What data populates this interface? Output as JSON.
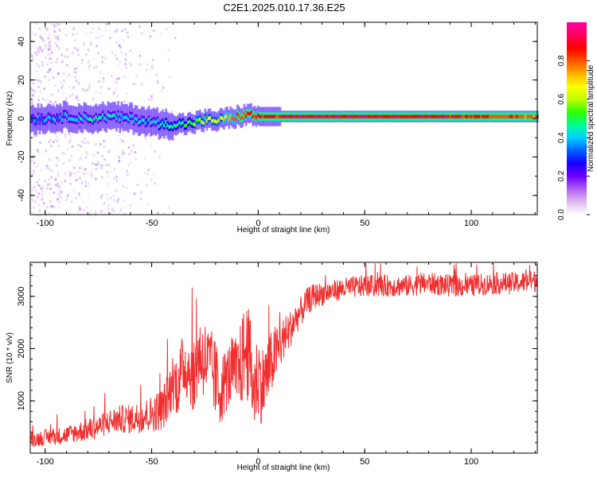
{
  "title": "C2E1.2025.010.17.36.E25",
  "chart_data": [
    {
      "type": "heatmap",
      "xlabel": "Height of straight line (km)",
      "ylabel": "Frequency (Hz)",
      "xlim": [
        -107,
        131
      ],
      "ylim": [
        -50,
        50
      ],
      "xticks": [
        "-100",
        "-50",
        "0",
        "50",
        "100"
      ],
      "yticks": [
        "40",
        "20",
        "0",
        "-20",
        "-40"
      ],
      "colorbar": {
        "label": "Normalized spectral amplitude",
        "range": [
          0,
          1
        ],
        "ticks": [
          "0.0",
          "0.2",
          "0.4",
          "0.6",
          "0.8"
        ],
        "colors": [
          "#ffffff",
          "#e0b8f0",
          "#b060f0",
          "#6a00ff",
          "#1a00ff",
          "#0060ff",
          "#00d0ff",
          "#00ff90",
          "#30ff00",
          "#c0ff00",
          "#ffff00",
          "#ffb000",
          "#ff5000",
          "#ff0000",
          "#ff0060",
          "#ff00a0"
        ]
      },
      "ridge_profile": {
        "x": [
          -107,
          -100,
          -90,
          -80,
          -70,
          -60,
          -50,
          -45,
          -40,
          -35,
          -30,
          -25,
          -20,
          -15,
          -10,
          -5,
          0,
          5,
          10,
          20,
          40,
          60,
          80,
          100,
          120,
          131
        ],
        "center_hz": [
          0,
          0,
          1,
          0,
          1,
          0,
          -2,
          -3,
          -3,
          -3,
          -2,
          -1,
          -1,
          0,
          1,
          2,
          1,
          1,
          1,
          1,
          1,
          1,
          1,
          1,
          1,
          1
        ],
        "amplitude": [
          0.35,
          0.38,
          0.4,
          0.42,
          0.42,
          0.4,
          0.4,
          0.45,
          0.5,
          0.5,
          0.55,
          0.6,
          0.62,
          0.7,
          0.8,
          0.85,
          0.85,
          0.85,
          0.88,
          0.9,
          0.9,
          0.88,
          0.9,
          0.85,
          0.82,
          0.8
        ]
      }
    },
    {
      "type": "line",
      "xlabel": "Height of straight line (km)",
      "ylabel": "SNR (10 * v/v)",
      "xlim": [
        -107,
        131
      ],
      "ylim": [
        0,
        3650
      ],
      "xticks": [
        "-100",
        "-50",
        "0",
        "50",
        "100"
      ],
      "yticks": [
        "1000",
        "2000",
        "3000"
      ],
      "series": [
        {
          "color": "#f03030",
          "x": [
            -107,
            -100,
            -95,
            -90,
            -85,
            -80,
            -75,
            -70,
            -65,
            -60,
            -55,
            -50,
            -45,
            -42,
            -40,
            -38,
            -35,
            -32,
            -30,
            -28,
            -25,
            -22,
            -20,
            -18,
            -15,
            -12,
            -10,
            -8,
            -6,
            -4,
            -2,
            0,
            2,
            4,
            6,
            8,
            10,
            12,
            14,
            16,
            18,
            20,
            23,
            26,
            30,
            35,
            40,
            50,
            60,
            70,
            80,
            90,
            100,
            110,
            120,
            131
          ],
          "y": [
            250,
            300,
            320,
            350,
            400,
            450,
            500,
            600,
            650,
            650,
            700,
            750,
            850,
            1100,
            1400,
            1300,
            1700,
            1600,
            1400,
            1900,
            1800,
            1600,
            1400,
            1200,
            1400,
            1600,
            1500,
            1700,
            2000,
            1800,
            1200,
            1500,
            1300,
            1500,
            1700,
            1900,
            2000,
            2200,
            2300,
            2450,
            2600,
            2700,
            2900,
            3000,
            3050,
            3100,
            3150,
            3200,
            3200,
            3200,
            3250,
            3200,
            3200,
            3250,
            3250,
            3300
          ],
          "noise_amplitude": [
            200,
            220,
            230,
            250,
            280,
            320,
            320,
            350,
            380,
            400,
            450,
            500,
            600,
            700,
            800,
            850,
            900,
            950,
            1000,
            1100,
            1100,
            1100,
            1100,
            1000,
            900,
            950,
            1000,
            1200,
            1400,
            1300,
            1200,
            1200,
            1100,
            1000,
            900,
            800,
            700,
            600,
            550,
            500,
            450,
            420,
            380,
            350,
            320,
            300,
            300,
            300,
            300,
            300,
            300,
            300,
            300,
            300,
            300,
            300
          ]
        }
      ]
    }
  ]
}
